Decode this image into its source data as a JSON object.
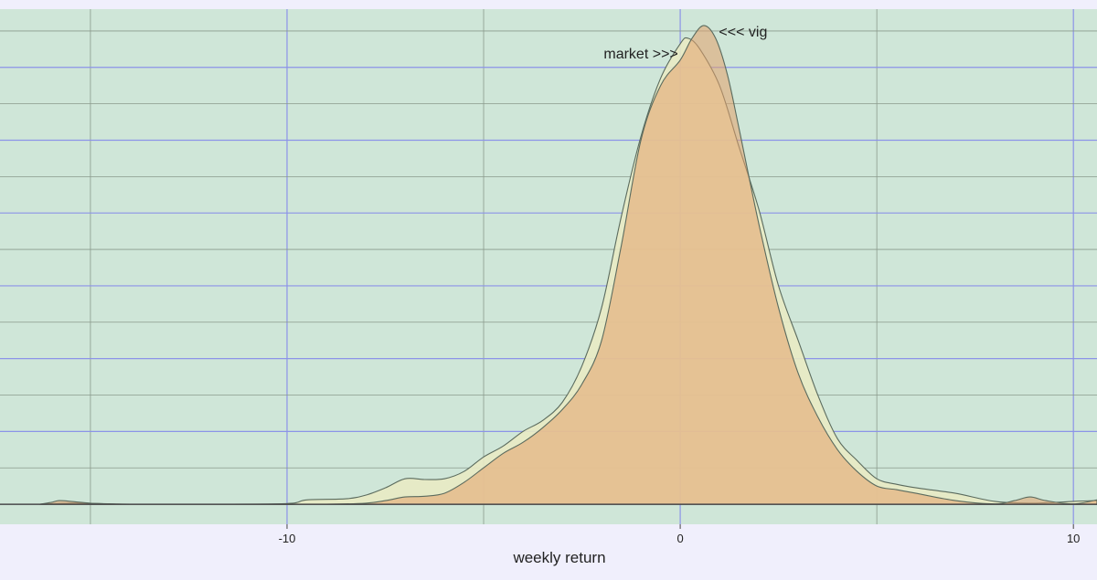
{
  "chart_data": {
    "type": "area",
    "title": "",
    "xlabel": "weekly return",
    "ylabel": "",
    "x_ticks": [
      -10,
      0,
      10
    ],
    "xlim": [
      -17.3,
      10.6
    ],
    "ylim": [
      -0.0055,
      0.136
    ],
    "grid": true,
    "legend": "none",
    "annotations": [
      {
        "text": "market >>>",
        "x": -1.0,
        "y": 0.1225
      },
      {
        "text": "<<< vig",
        "x": 1.6,
        "y": 0.1285
      }
    ],
    "series": [
      {
        "key": "market",
        "x": [
          -16.3,
          -15.5,
          -14.8,
          -14.0,
          -12.0,
          -10.0,
          -9.5,
          -8.5,
          -8.0,
          -7.5,
          -7.0,
          -6.5,
          -6.0,
          -5.5,
          -5.0,
          -4.5,
          -4.0,
          -3.5,
          -3.0,
          -2.5,
          -2.0,
          -1.5,
          -1.0,
          -0.5,
          0.0,
          0.2,
          0.5,
          1.0,
          1.5,
          2.0,
          2.5,
          3.0,
          3.5,
          4.0,
          4.5,
          5.0,
          5.5,
          6.0,
          7.0,
          8.0,
          9.0,
          10.0,
          10.6
        ],
        "y": [
          0,
          0.0003,
          0.0002,
          0,
          0,
          0.0002,
          0.0012,
          0.0015,
          0.0025,
          0.0045,
          0.007,
          0.0068,
          0.007,
          0.009,
          0.013,
          0.016,
          0.02,
          0.023,
          0.028,
          0.038,
          0.054,
          0.079,
          0.101,
          0.117,
          0.1265,
          0.128,
          0.125,
          0.115,
          0.098,
          0.081,
          0.06,
          0.045,
          0.03,
          0.018,
          0.012,
          0.007,
          0.0055,
          0.0045,
          0.003,
          0.0008,
          0.0003,
          0.0008,
          0.001
        ]
      },
      {
        "key": "vig",
        "x": [
          -16.3,
          -16.0,
          -15.8,
          -15.5,
          -15.0,
          -14.5,
          -14.0,
          -12.0,
          -10.0,
          -9.0,
          -8.0,
          -7.5,
          -7.0,
          -6.5,
          -6.0,
          -5.5,
          -5.0,
          -4.5,
          -4.0,
          -3.5,
          -3.0,
          -2.5,
          -2.0,
          -1.5,
          -1.0,
          -0.5,
          0.0,
          0.3,
          0.6,
          0.9,
          1.2,
          1.5,
          2.0,
          2.5,
          3.0,
          3.5,
          4.0,
          4.5,
          5.0,
          5.5,
          6.0,
          7.0,
          8.0,
          8.5,
          8.9,
          9.3,
          10.0,
          10.6
        ],
        "y": [
          0,
          0.0005,
          0.001,
          0.0008,
          0.0003,
          0.0001,
          0,
          0,
          0,
          0,
          0.0003,
          0.001,
          0.002,
          0.0022,
          0.003,
          0.006,
          0.01,
          0.014,
          0.017,
          0.021,
          0.026,
          0.033,
          0.045,
          0.071,
          0.1,
          0.115,
          0.122,
          0.128,
          0.1315,
          0.128,
          0.118,
          0.103,
          0.077,
          0.054,
          0.036,
          0.024,
          0.015,
          0.009,
          0.005,
          0.004,
          0.003,
          0.001,
          0.0001,
          0.001,
          0.002,
          0.001,
          0.0001,
          0.0012
        ]
      }
    ]
  },
  "colors": {
    "page_background": "#f0effc",
    "panel_background": "#cfe6d8",
    "major_grid": "#8c93e8",
    "minor_grid": "#8a9a8c",
    "market_fill": "#e8eac4",
    "vig_fill": "#e3a06b",
    "outline": "#5b6b5e",
    "baseline": "#4a4a4a"
  }
}
